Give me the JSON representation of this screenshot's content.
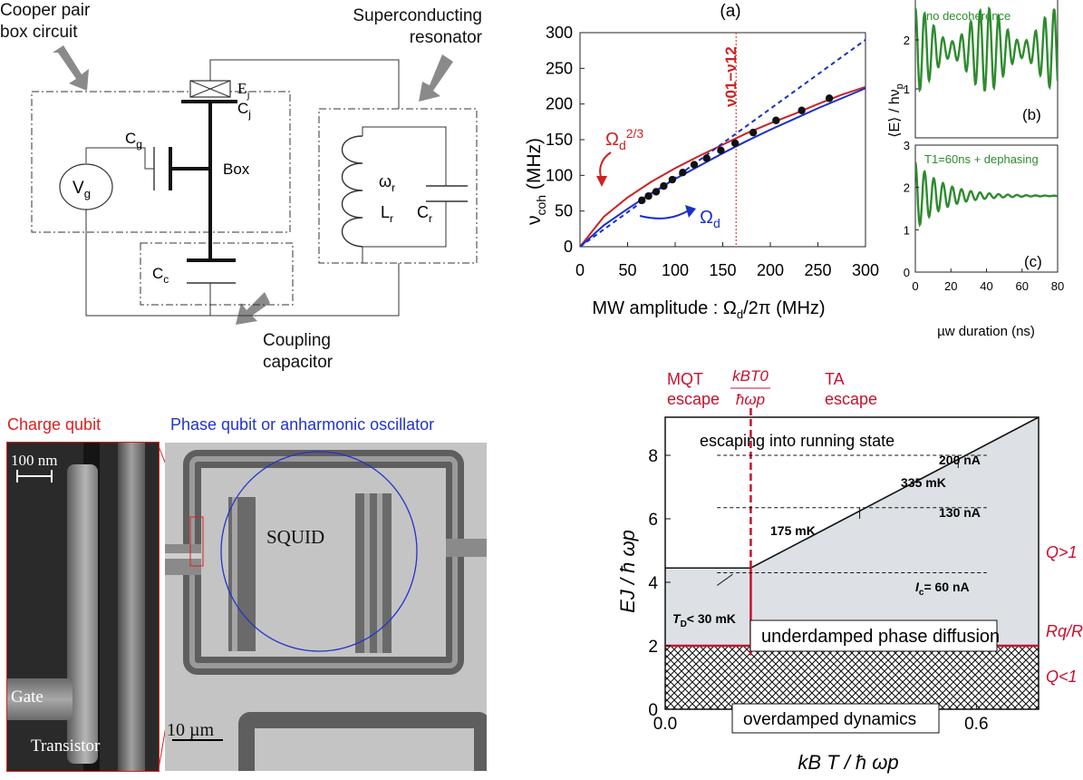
{
  "circuit": {
    "label_cpb": [
      "Cooper pair",
      "box circuit"
    ],
    "label_resonator": [
      "Superconducting",
      "resonator"
    ],
    "label_coupling": [
      "Coupling",
      "capacitor"
    ],
    "Ej": "E",
    "Ej_sub": "j",
    "Cj": "C",
    "Cj_sub": "j",
    "Cg": "C",
    "Cg_sub": "g",
    "box": "Box",
    "Vg": "V",
    "Vg_sub": "g",
    "Cc": "C",
    "Cc_sub": "c",
    "wr": "ω",
    "wr_sub": "r",
    "Lr": "L",
    "Lr_sub": "r",
    "Cr": "C",
    "Cr_sub": "r"
  },
  "chart_a": {
    "panel_label": "(a)",
    "ylabel_main": "ν",
    "ylabel_sub": "coh",
    "ylabel_unit": " (MHz)",
    "xlabel": "MW amplitude : Ω",
    "xlabel_sub": "d",
    "xlabel_rest": "/2π (MHz)",
    "xticks": [
      "0",
      "50",
      "100",
      "150",
      "200",
      "250",
      "300"
    ],
    "yticks": [
      "0",
      "50",
      "100",
      "150",
      "200",
      "250",
      "300"
    ],
    "vline_label": "ν01−ν12",
    "red_label": "Ω",
    "red_label_sub": "d",
    "red_label_sup": "2/3",
    "blue_label": "Ω",
    "blue_label_sub": "d"
  },
  "chart_data": [
    {
      "type": "scatter",
      "title": "(a)",
      "xlabel": "MW amplitude : Ωd/2π (MHz)",
      "ylabel": "νcoh (MHz)",
      "xlim": [
        0,
        300
      ],
      "ylim": [
        0,
        300
      ],
      "points": {
        "x": [
          65,
          72,
          80,
          88,
          97,
          108,
          120,
          133,
          148,
          163,
          182,
          206,
          233,
          262
        ],
        "y": [
          65,
          71,
          77,
          85,
          94,
          104,
          115,
          124,
          135,
          145,
          160,
          177,
          191,
          208
        ]
      },
      "curves": [
        {
          "name": "Ωd^2/3",
          "color": "#cc2222",
          "x": [
            0,
            25,
            50,
            75,
            100,
            125,
            150,
            175,
            200,
            225,
            250,
            275,
            300
          ],
          "y": [
            0,
            42,
            69,
            91,
            110,
            127,
            143,
            159,
            173,
            186,
            200,
            213,
            224
          ]
        },
        {
          "name": "Ωd",
          "color": "#1a2fc8",
          "x": [
            0,
            25,
            50,
            75,
            100,
            125,
            150,
            175,
            200,
            225,
            250,
            275,
            300
          ],
          "y": [
            0,
            30,
            53,
            75,
            95,
            113,
            131,
            148,
            164,
            179,
            194,
            208,
            222
          ]
        },
        {
          "name": "linear",
          "color": "#1a2fc8",
          "style": "dashed",
          "x": [
            0,
            300
          ],
          "y": [
            0,
            290
          ]
        }
      ],
      "vline_x": 164
    },
    {
      "type": "line",
      "title": "(b)",
      "ylabel": "⟨E⟩ / hνp",
      "xlim": [
        0,
        80
      ],
      "annotation": "no decoherence"
    },
    {
      "type": "line",
      "title": "(c)",
      "xlabel": "µw duration (ns)",
      "xlim": [
        0,
        80
      ],
      "ylim": [
        0,
        3
      ],
      "annotation": "T1=60ns + dephasing"
    },
    {
      "type": "area",
      "xlabel": "kB T / ħωp",
      "ylabel": "EJ / ħωp",
      "xlim": [
        0,
        0.72
      ],
      "ylim": [
        0,
        9.2
      ]
    }
  ],
  "chart_bc": {
    "ylabel": "⟨E⟩ / hν",
    "ylabel_sub": "p",
    "label_b": "(b)",
    "label_c": "(c)",
    "note_b": "no decoherence",
    "note_c": "T1=60ns + dephasing",
    "yticks_b": [
      "1",
      "2"
    ],
    "yticks_c": [
      "0",
      "1",
      "2",
      "3"
    ],
    "xticks": [
      "0",
      "20",
      "40",
      "60",
      "80"
    ],
    "xlabel": "µw duration (ns)",
    "colors": {
      "trace": "#2e8b2e",
      "note": "#2e8b2e"
    }
  },
  "micrograph": {
    "title_charge": "Charge qubit",
    "title_phase": "Phase qubit or anharmonic oscillator",
    "scale_100nm": "100 nm",
    "gate": "Gate",
    "transistor": "Transistor",
    "squid": "SQUID",
    "scale_10um": "10 µm",
    "colors": {
      "charge": "#d92020",
      "phase": "#2233cc"
    }
  },
  "phase": {
    "top_mqt": [
      "MQT",
      "escape"
    ],
    "top_frac_num": "kBT0",
    "top_frac_den": "ħωp",
    "top_ta": [
      "TA",
      "escape"
    ],
    "running": "escaping into running state",
    "underdamped": "underdamped phase diffusion",
    "overdamped": "overdamped dynamics",
    "i200": "200 nA",
    "i130": "130 nA",
    "ic": "I",
    "ic_sub": "c",
    "ic_rest": "= 60 nA",
    "t335": "335 mK",
    "t175": "175 mK",
    "td": "T",
    "td_sub": "D",
    "td_rest": "< 30 mK",
    "right_q_hi": "Q>1",
    "right_r": "Rq/R",
    "right_q_lo": "Q<1",
    "xticks": [
      "0.0",
      "0.2",
      "0.4",
      "0.6"
    ],
    "yticks": [
      "0",
      "2",
      "4",
      "6",
      "8"
    ],
    "xlabel": "kB T / ħ ωp",
    "ylabel": "EJ / ħ ωp",
    "colors": {
      "accent": "#c8102e",
      "fill": "#dde1e6"
    }
  }
}
